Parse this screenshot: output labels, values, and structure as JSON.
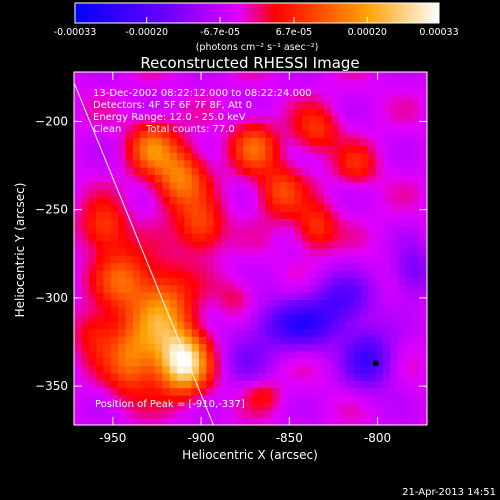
{
  "chart_data": {
    "type": "heatmap",
    "title": "Reconstructed RHESSI Image",
    "xlabel": "Heliocentric X (arcsec)",
    "ylabel": "Heliocentric Y (arcsec)",
    "xlim": [
      -972,
      -772
    ],
    "ylim": [
      -372,
      -172
    ],
    "x_ticks": [
      -950,
      -900,
      -850,
      -800
    ],
    "x_tick_labels": [
      "-950",
      "-900",
      "-850",
      "-800"
    ],
    "y_ticks": [
      -200,
      -250,
      -300,
      -350
    ],
    "y_tick_labels": [
      "−200",
      "−250",
      "−300",
      "−350"
    ],
    "colorbar": {
      "range": [
        -0.00033,
        0.00033
      ],
      "ticks": [
        -0.00033,
        -0.0002,
        -6.7e-05,
        6.7e-05,
        0.0002,
        0.00033
      ],
      "tick_labels": [
        "-0.00033",
        "-0.00020",
        "-6.7e-05",
        "6.7e-05",
        "0.00020",
        "0.00033"
      ],
      "unit_label": "(photons cm⁻² s⁻¹ asec⁻²)",
      "colors": [
        "#0000ff",
        "#6a00ff",
        "#e000ff",
        "#ff0000",
        "#ffa000",
        "#ffffff"
      ]
    },
    "annotations": {
      "time_range": "13-Dec-2002 08:22:12.000 to 08:22:24.000",
      "detectors": "Detectors: 4F 5F 6F 7F 8F, Att 0",
      "energy": "Energy Range: 12.0 - 25.0 keV",
      "method": "Clean",
      "counts": "Total counts: 77.0",
      "peak": "Position of Peak = [-910,-337]"
    },
    "peak_position": [
      -910,
      -337
    ],
    "limb_line": [
      [
        -972,
        -178
      ],
      [
        -893,
        -372
      ]
    ],
    "hot_spots": [
      {
        "x": -910,
        "y": -337,
        "v": 0.00033,
        "sx": 10,
        "sy": 12
      },
      {
        "x": -922,
        "y": -310,
        "v": 0.00022,
        "sx": 12,
        "sy": 18
      },
      {
        "x": -940,
        "y": -335,
        "v": 0.00018,
        "sx": 10,
        "sy": 14
      },
      {
        "x": -945,
        "y": -290,
        "v": 0.00016,
        "sx": 10,
        "sy": 12
      },
      {
        "x": -912,
        "y": -232,
        "v": 0.0002,
        "sx": 10,
        "sy": 12
      },
      {
        "x": -928,
        "y": -215,
        "v": 0.00018,
        "sx": 9,
        "sy": 10
      },
      {
        "x": -900,
        "y": -260,
        "v": 0.00015,
        "sx": 9,
        "sy": 10
      },
      {
        "x": -870,
        "y": -215,
        "v": 0.00016,
        "sx": 9,
        "sy": 10
      },
      {
        "x": -855,
        "y": -240,
        "v": 0.00014,
        "sx": 9,
        "sy": 10
      },
      {
        "x": -835,
        "y": -205,
        "v": 0.00012,
        "sx": 9,
        "sy": 9
      },
      {
        "x": -955,
        "y": -260,
        "v": 0.00014,
        "sx": 9,
        "sy": 10
      },
      {
        "x": -960,
        "y": -320,
        "v": 0.0001,
        "sx": 8,
        "sy": 10
      },
      {
        "x": -835,
        "y": -260,
        "v": 0.00013,
        "sx": 8,
        "sy": 9
      },
      {
        "x": -812,
        "y": -225,
        "v": 0.0001,
        "sx": 8,
        "sy": 8
      },
      {
        "x": -845,
        "y": -315,
        "v": -0.0002,
        "sx": 18,
        "sy": 10
      },
      {
        "x": -805,
        "y": -335,
        "v": -0.00018,
        "sx": 10,
        "sy": 12
      },
      {
        "x": -820,
        "y": -300,
        "v": -0.00014,
        "sx": 12,
        "sy": 10
      },
      {
        "x": -780,
        "y": -285,
        "v": -0.00012,
        "sx": 8,
        "sy": 10
      },
      {
        "x": -875,
        "y": -335,
        "v": -8e-05,
        "sx": 10,
        "sy": 10
      },
      {
        "x": -880,
        "y": -300,
        "v": 6e-05,
        "sx": 8,
        "sy": 8
      },
      {
        "x": -865,
        "y": -355,
        "v": 7e-05,
        "sx": 7,
        "sy": 6
      }
    ]
  },
  "footer": {
    "date": "21-Apr-2013 14:51"
  }
}
